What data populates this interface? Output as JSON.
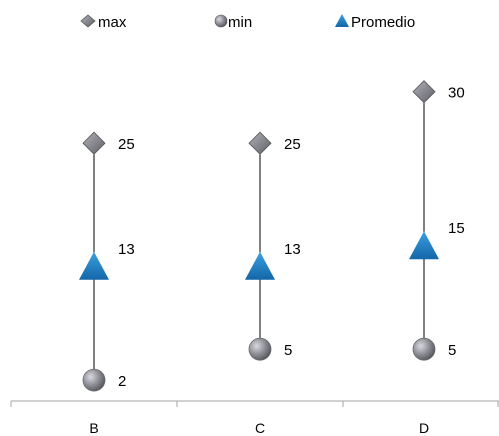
{
  "chart_data": {
    "type": "scatter",
    "categories": [
      "B",
      "C",
      "D"
    ],
    "series": [
      {
        "name": "max",
        "marker": "diamond",
        "values": [
          25,
          25,
          30
        ]
      },
      {
        "name": "min",
        "marker": "circle",
        "values": [
          2,
          5,
          5
        ]
      },
      {
        "name": "Promedio",
        "marker": "triangle",
        "values": [
          13,
          13,
          15
        ]
      }
    ],
    "ylim": [
      0,
      32
    ],
    "grid": false,
    "legend_position": "top",
    "colors": {
      "max": "#7f7f86",
      "min": "#8e8e96",
      "Promedio": "#1f7fc0",
      "axis": "#a6a6a6",
      "range_line": "#000000"
    }
  }
}
